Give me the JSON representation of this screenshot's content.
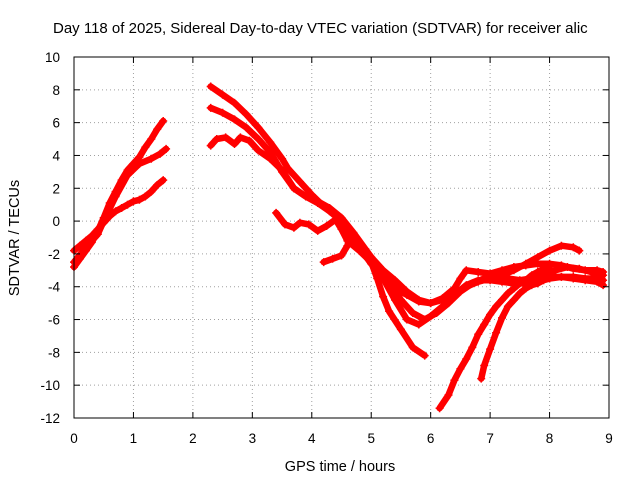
{
  "chart_data": {
    "type": "scatter",
    "title": "Day 118 of 2025, Sidereal Day-to-day VTEC variation (SDTVAR) for receiver alic",
    "xlabel": "GPS time / hours",
    "ylabel": "SDTVAR / TECUs",
    "xlim": [
      0,
      9
    ],
    "ylim": [
      -12,
      10
    ],
    "xticks": [
      0,
      1,
      2,
      3,
      4,
      5,
      6,
      7,
      8,
      9
    ],
    "yticks": [
      -12,
      -10,
      -8,
      -6,
      -4,
      -2,
      0,
      2,
      4,
      6,
      8,
      10
    ],
    "grid": true,
    "marker": "plus",
    "color": "#ff0000",
    "series": [
      {
        "points": [
          [
            0,
            -2.8
          ],
          [
            0.1,
            -2.3
          ],
          [
            0.2,
            -1.8
          ],
          [
            0.3,
            -1.3
          ],
          [
            0.4,
            -0.6
          ],
          [
            0.5,
            0.2
          ],
          [
            0.6,
            1.1
          ],
          [
            0.7,
            1.8
          ],
          [
            0.8,
            2.5
          ],
          [
            0.9,
            3.1
          ],
          [
            1.0,
            3.5
          ],
          [
            1.1,
            3.9
          ],
          [
            1.2,
            4.5
          ],
          [
            1.3,
            5.0
          ],
          [
            1.4,
            5.6
          ],
          [
            1.5,
            6.1
          ]
        ]
      },
      {
        "points": [
          [
            0,
            -1.8
          ],
          [
            0.1,
            -1.5
          ],
          [
            0.2,
            -1.2
          ],
          [
            0.3,
            -0.9
          ],
          [
            0.4,
            -0.5
          ],
          [
            0.5,
            -0.1
          ],
          [
            0.6,
            0.3
          ],
          [
            0.7,
            0.6
          ],
          [
            0.8,
            0.8
          ],
          [
            0.9,
            1.0
          ],
          [
            1.0,
            1.2
          ],
          [
            1.1,
            1.3
          ],
          [
            1.2,
            1.5
          ],
          [
            1.3,
            1.8
          ],
          [
            1.4,
            2.2
          ],
          [
            1.5,
            2.5
          ]
        ]
      },
      {
        "points": [
          [
            0,
            -2.5
          ],
          [
            0.2,
            -1.6
          ],
          [
            0.4,
            -0.8
          ],
          [
            0.5,
            0
          ],
          [
            0.7,
            1.5
          ],
          [
            0.9,
            2.8
          ],
          [
            1.1,
            3.5
          ],
          [
            1.3,
            3.8
          ],
          [
            1.45,
            4.1
          ],
          [
            1.55,
            4.4
          ]
        ]
      },
      {
        "points": [
          [
            2.3,
            8.2
          ],
          [
            2.5,
            7.7
          ],
          [
            2.7,
            7.2
          ],
          [
            2.9,
            6.5
          ],
          [
            3.1,
            5.7
          ],
          [
            3.3,
            4.8
          ],
          [
            3.5,
            3.8
          ],
          [
            3.6,
            3.2
          ],
          [
            3.8,
            2.4
          ],
          [
            4.0,
            1.6
          ],
          [
            4.2,
            0.9
          ],
          [
            4.4,
            0.3
          ],
          [
            4.6,
            -0.5
          ],
          [
            4.8,
            -1.3
          ],
          [
            5.0,
            -2.2
          ],
          [
            5.2,
            -3.0
          ],
          [
            5.4,
            -3.6
          ],
          [
            5.6,
            -4.3
          ],
          [
            5.8,
            -4.8
          ],
          [
            6.0,
            -5.0
          ],
          [
            6.2,
            -4.8
          ],
          [
            6.4,
            -4.4
          ],
          [
            6.6,
            -4.0
          ],
          [
            6.8,
            -3.7
          ],
          [
            7.0,
            -3.5
          ],
          [
            7.2,
            -3.3
          ],
          [
            7.4,
            -3.0
          ],
          [
            7.6,
            -2.6
          ],
          [
            7.8,
            -2.2
          ],
          [
            8.0,
            -1.8
          ],
          [
            8.2,
            -1.5
          ],
          [
            8.4,
            -1.6
          ],
          [
            8.5,
            -1.8
          ]
        ]
      },
      {
        "points": [
          [
            2.3,
            6.9
          ],
          [
            2.5,
            6.6
          ],
          [
            2.7,
            6.2
          ],
          [
            2.9,
            5.7
          ],
          [
            3.1,
            5.0
          ],
          [
            3.3,
            4.2
          ],
          [
            3.5,
            3.0
          ],
          [
            3.7,
            2.0
          ],
          [
            3.9,
            1.5
          ],
          [
            4.1,
            1.2
          ],
          [
            4.3,
            0.8
          ],
          [
            4.5,
            0.2
          ],
          [
            4.7,
            -0.7
          ],
          [
            4.9,
            -1.7
          ],
          [
            5.1,
            -2.7
          ],
          [
            5.3,
            -3.7
          ],
          [
            5.5,
            -4.8
          ],
          [
            5.7,
            -5.6
          ],
          [
            5.9,
            -6.0
          ],
          [
            6.1,
            -5.6
          ],
          [
            6.3,
            -5.0
          ],
          [
            6.5,
            -4.3
          ],
          [
            6.7,
            -3.8
          ],
          [
            6.9,
            -3.5
          ],
          [
            7.1,
            -3.4
          ],
          [
            7.3,
            -3.5
          ],
          [
            7.5,
            -3.6
          ],
          [
            7.7,
            -3.5
          ],
          [
            7.9,
            -3.3
          ],
          [
            8.1,
            -3.0
          ],
          [
            8.3,
            -2.8
          ],
          [
            8.5,
            -2.9
          ],
          [
            8.7,
            -3.1
          ],
          [
            8.9,
            -3.3
          ]
        ]
      },
      {
        "points": [
          [
            2.3,
            4.6
          ],
          [
            2.4,
            5.0
          ],
          [
            2.55,
            5.1
          ],
          [
            2.7,
            4.7
          ],
          [
            2.8,
            5.1
          ],
          [
            2.95,
            4.9
          ],
          [
            3.1,
            4.3
          ],
          [
            3.3,
            3.8
          ],
          [
            3.5,
            3.1
          ],
          [
            3.7,
            2.0
          ],
          [
            3.9,
            1.5
          ],
          [
            4.1,
            1.1
          ],
          [
            4.3,
            0.6
          ],
          [
            4.5,
            0.1
          ],
          [
            4.6,
            -0.6
          ],
          [
            4.8,
            -1.6
          ],
          [
            5.0,
            -2.5
          ],
          [
            5.2,
            -3.5
          ],
          [
            5.4,
            -4.8
          ],
          [
            5.6,
            -6.0
          ],
          [
            5.8,
            -6.3
          ],
          [
            6.0,
            -5.8
          ],
          [
            6.2,
            -5.2
          ],
          [
            6.4,
            -4.5
          ],
          [
            6.6,
            -3.9
          ],
          [
            6.8,
            -3.6
          ],
          [
            7.0,
            -3.6
          ],
          [
            7.2,
            -3.7
          ],
          [
            7.4,
            -3.8
          ],
          [
            7.6,
            -3.8
          ],
          [
            7.8,
            -3.6
          ],
          [
            8.0,
            -3.4
          ],
          [
            8.2,
            -3.4
          ],
          [
            8.4,
            -3.5
          ],
          [
            8.6,
            -3.6
          ],
          [
            8.8,
            -3.7
          ],
          [
            8.9,
            -3.9
          ]
        ]
      },
      {
        "points": [
          [
            3.4,
            0.5
          ],
          [
            3.55,
            -0.2
          ],
          [
            3.7,
            -0.4
          ],
          [
            3.8,
            -0.1
          ],
          [
            3.95,
            -0.2
          ],
          [
            4.1,
            -0.6
          ],
          [
            4.25,
            -0.3
          ],
          [
            4.4,
            0.1
          ],
          [
            4.5,
            -0.5
          ],
          [
            4.6,
            -1.2
          ],
          [
            4.8,
            -1.8
          ],
          [
            5.0,
            -2.5
          ],
          [
            5.1,
            -3.5
          ],
          [
            5.2,
            -4.6
          ],
          [
            5.3,
            -5.5
          ],
          [
            5.5,
            -6.6
          ],
          [
            5.7,
            -7.7
          ],
          [
            5.9,
            -8.2
          ]
        ]
      },
      {
        "points": [
          [
            4.2,
            -2.5
          ],
          [
            4.35,
            -2.3
          ],
          [
            4.5,
            -2.1
          ],
          [
            4.6,
            -1.5
          ],
          [
            4.65,
            -0.8
          ],
          [
            4.7,
            -1.0
          ],
          [
            4.8,
            -1.6
          ],
          [
            5.0,
            -2.6
          ],
          [
            5.2,
            -3.4
          ],
          [
            5.4,
            -4.1
          ],
          [
            5.6,
            -4.5
          ],
          [
            5.8,
            -4.9
          ],
          [
            6.0,
            -5.0
          ],
          [
            6.2,
            -4.7
          ],
          [
            6.4,
            -4.1
          ],
          [
            6.5,
            -3.5
          ],
          [
            6.6,
            -3.0
          ],
          [
            6.8,
            -3.1
          ],
          [
            7.0,
            -3.2
          ],
          [
            7.2,
            -3.0
          ],
          [
            7.4,
            -2.8
          ],
          [
            7.6,
            -2.7
          ],
          [
            7.8,
            -2.6
          ],
          [
            8.0,
            -2.6
          ],
          [
            8.2,
            -2.7
          ],
          [
            8.4,
            -2.9
          ],
          [
            8.6,
            -3.0
          ],
          [
            8.8,
            -3.0
          ],
          [
            8.9,
            -3.1
          ]
        ]
      },
      {
        "points": [
          [
            6.15,
            -11.4
          ],
          [
            6.3,
            -10.6
          ],
          [
            6.4,
            -9.7
          ],
          [
            6.5,
            -9.0
          ],
          [
            6.6,
            -8.4
          ],
          [
            6.7,
            -7.7
          ],
          [
            6.8,
            -6.9
          ],
          [
            6.9,
            -6.3
          ],
          [
            7.0,
            -5.7
          ],
          [
            7.1,
            -5.2
          ],
          [
            7.2,
            -4.8
          ],
          [
            7.3,
            -4.4
          ],
          [
            7.4,
            -4.1
          ],
          [
            7.5,
            -3.8
          ],
          [
            7.6,
            -3.6
          ],
          [
            7.7,
            -3.3
          ],
          [
            7.8,
            -3.1
          ],
          [
            7.9,
            -2.9
          ],
          [
            8.0,
            -2.8
          ]
        ]
      },
      {
        "points": [
          [
            6.85,
            -9.6
          ],
          [
            6.9,
            -8.8
          ],
          [
            7.0,
            -7.8
          ],
          [
            7.1,
            -6.8
          ],
          [
            7.2,
            -5.9
          ],
          [
            7.3,
            -5.2
          ],
          [
            7.4,
            -4.8
          ],
          [
            7.5,
            -4.4
          ],
          [
            7.6,
            -4.1
          ],
          [
            7.7,
            -3.9
          ],
          [
            7.8,
            -3.8
          ],
          [
            7.9,
            -3.6
          ],
          [
            8.0,
            -3.5
          ],
          [
            8.2,
            -3.4
          ],
          [
            8.4,
            -3.4
          ],
          [
            8.6,
            -3.5
          ],
          [
            8.8,
            -3.5
          ],
          [
            8.9,
            -3.6
          ]
        ]
      }
    ]
  }
}
